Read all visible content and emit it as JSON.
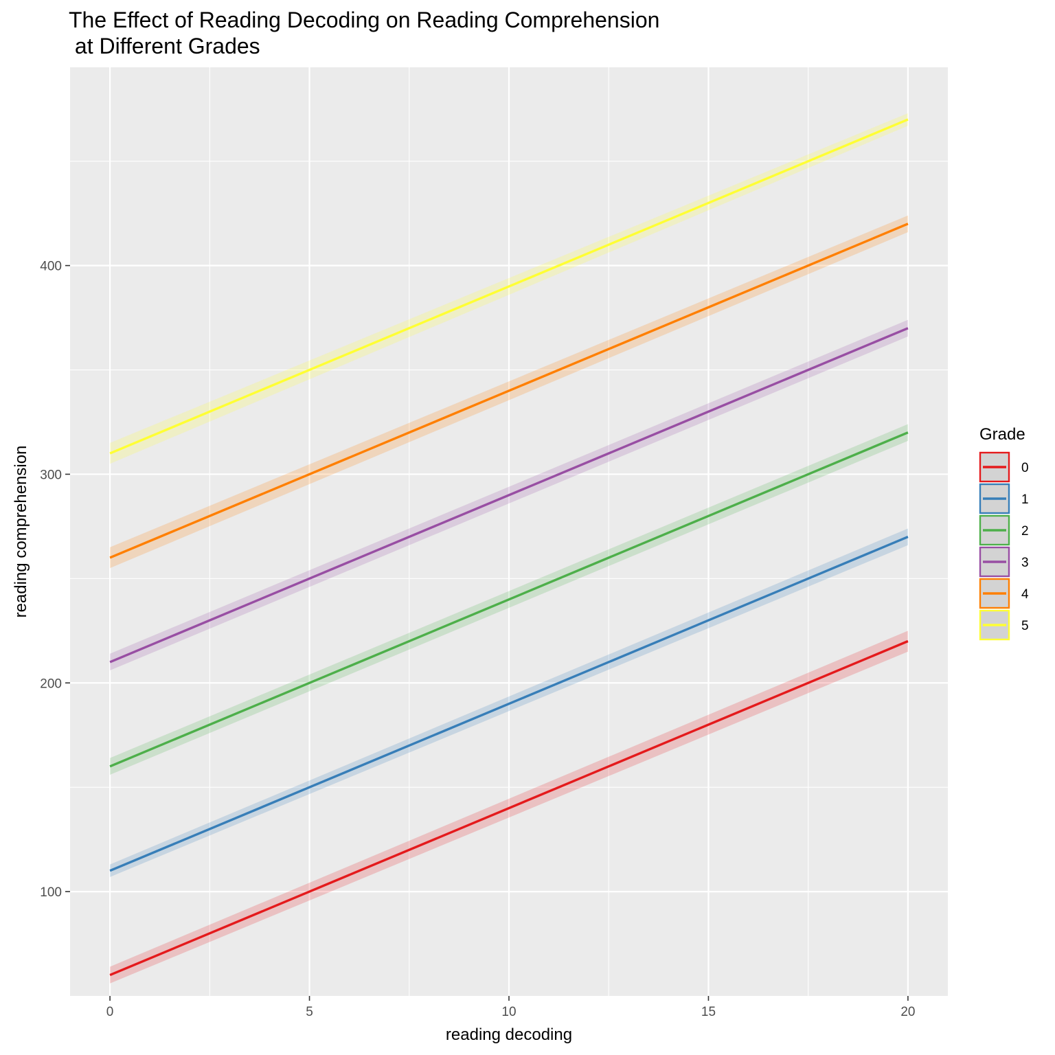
{
  "chart_data": {
    "type": "line",
    "title": "The Effect of Reading Decoding on Reading Comprehension\n at Different Grades",
    "xlabel": "reading decoding",
    "ylabel": "reading comprehension",
    "xlim": [
      -1,
      21
    ],
    "ylim": [
      50,
      495
    ],
    "x_ticks": [
      0,
      5,
      10,
      15,
      20
    ],
    "y_ticks": [
      100,
      200,
      300,
      400
    ],
    "grid": true,
    "legend": {
      "title": "Grade",
      "position": "right"
    },
    "x": [
      0,
      20
    ],
    "series": [
      {
        "name": "0",
        "color": "#E41A1C",
        "values": [
          60,
          220
        ],
        "ci_halfwidth": [
          4,
          5
        ]
      },
      {
        "name": "1",
        "color": "#377EB8",
        "values": [
          110,
          270
        ],
        "ci_halfwidth": [
          3,
          4
        ]
      },
      {
        "name": "2",
        "color": "#4DAF4A",
        "values": [
          160,
          320
        ],
        "ci_halfwidth": [
          4,
          4
        ]
      },
      {
        "name": "3",
        "color": "#984EA3",
        "values": [
          210,
          370
        ],
        "ci_halfwidth": [
          4,
          4
        ]
      },
      {
        "name": "4",
        "color": "#FF7F00",
        "values": [
          260,
          420
        ],
        "ci_halfwidth": [
          5,
          4
        ]
      },
      {
        "name": "5",
        "color": "#FFFF33",
        "values": [
          310,
          470
        ],
        "ci_halfwidth": [
          5,
          3
        ]
      }
    ]
  }
}
